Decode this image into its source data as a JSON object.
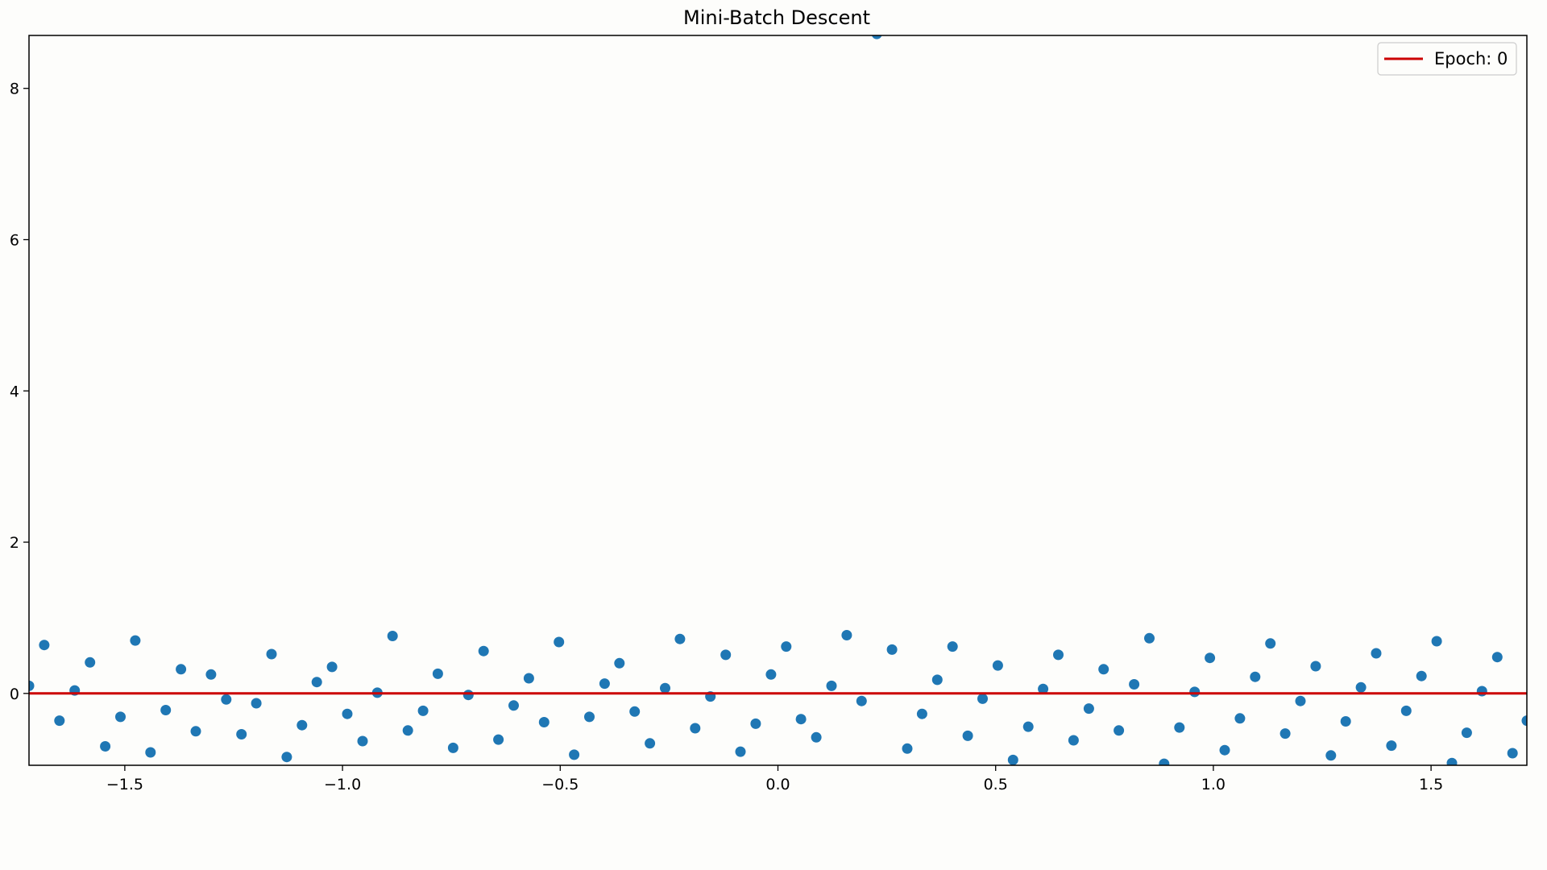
{
  "chart_data": {
    "type": "scatter",
    "title": "Mini-Batch Descent",
    "xlabel": "",
    "ylabel": "",
    "xlim": [
      -1.72,
      1.72
    ],
    "ylim": [
      -0.95,
      8.7
    ],
    "grid": false,
    "legend": {
      "position": "top-right",
      "entries": [
        {
          "label": "Epoch: 0",
          "color": "#cc0000",
          "kind": "line"
        }
      ]
    },
    "x_ticks": [
      -1.5,
      -1.0,
      -0.5,
      0.0,
      0.5,
      1.0,
      1.5
    ],
    "x_tick_labels": [
      "−1.5",
      "−1.0",
      "−0.5",
      "0.0",
      "0.5",
      "1.0",
      "1.5"
    ],
    "y_ticks": [
      0,
      2,
      4,
      6,
      8
    ],
    "y_tick_labels": [
      "0",
      "2",
      "4",
      "6",
      "8"
    ],
    "colors": {
      "points": "#1f77b4",
      "fit_line": "#cc0000",
      "background": "#fdfdfb"
    },
    "fit_line": {
      "slope": 0.0,
      "intercept": 0.0
    },
    "points": {
      "x": [
        -1.72,
        -1.685,
        -1.65,
        -1.615,
        -1.58,
        -1.545,
        -1.51,
        -1.476,
        -1.441,
        -1.406,
        -1.371,
        -1.337,
        -1.302,
        -1.267,
        -1.232,
        -1.198,
        -1.163,
        -1.128,
        -1.093,
        -1.059,
        -1.024,
        -0.989,
        -0.954,
        -0.92,
        -0.885,
        -0.85,
        -0.815,
        -0.781,
        -0.746,
        -0.711,
        -0.676,
        -0.642,
        -0.607,
        -0.572,
        -0.537,
        -0.503,
        -0.468,
        -0.433,
        -0.398,
        -0.364,
        -0.329,
        -0.294,
        -0.259,
        -0.225,
        -0.19,
        -0.155,
        -0.12,
        -0.086,
        -0.051,
        -0.016,
        0.019,
        0.053,
        0.088,
        0.123,
        0.158,
        0.192,
        0.227,
        0.262,
        0.297,
        0.331,
        0.366,
        0.401,
        0.436,
        0.47,
        0.505,
        0.54,
        0.575,
        0.609,
        0.644,
        0.679,
        0.714,
        0.748,
        0.783,
        0.818,
        0.853,
        0.887,
        0.922,
        0.957,
        0.992,
        1.026,
        1.061,
        1.096,
        1.131,
        1.165,
        1.2,
        1.235,
        1.27,
        1.304,
        1.339,
        1.374,
        1.409,
        1.443,
        1.478,
        1.513,
        1.548,
        1.582,
        1.617,
        1.652,
        1.687,
        1.72
      ],
      "y": [
        0.1,
        0.64,
        -0.36,
        0.04,
        0.41,
        -0.7,
        -0.31,
        0.7,
        -0.78,
        -0.22,
        0.32,
        -0.5,
        0.25,
        -0.08,
        -0.54,
        -0.13,
        0.52,
        -0.84,
        -0.42,
        0.15,
        0.35,
        -0.27,
        -0.63,
        0.01,
        0.76,
        -0.49,
        -0.23,
        0.26,
        -0.72,
        -0.02,
        0.56,
        -0.61,
        -0.16,
        0.2,
        -0.38,
        0.68,
        -0.81,
        -0.31,
        0.13,
        0.4,
        -0.24,
        -0.66,
        0.07,
        0.72,
        -0.46,
        -0.04,
        0.51,
        -0.77,
        -0.4,
        0.25,
        0.62,
        -0.34,
        -0.58,
        0.1,
        0.77,
        -0.1,
        8.72,
        0.58,
        -0.73,
        -0.27,
        0.18,
        0.62,
        -0.56,
        -0.07,
        0.37,
        -0.88,
        -0.44,
        0.06,
        0.51,
        -0.62,
        -0.2,
        0.32,
        -0.49,
        0.12,
        0.73,
        -0.93,
        -0.45,
        0.02,
        0.47,
        -0.75,
        -0.33,
        0.22,
        0.66,
        -0.53,
        -0.1,
        0.36,
        -0.82,
        -0.37,
        0.08,
        0.53,
        -0.69,
        -0.23,
        0.23,
        0.69,
        -0.92,
        -0.52,
        0.03,
        0.48,
        -0.79,
        -0.36
      ]
    }
  }
}
